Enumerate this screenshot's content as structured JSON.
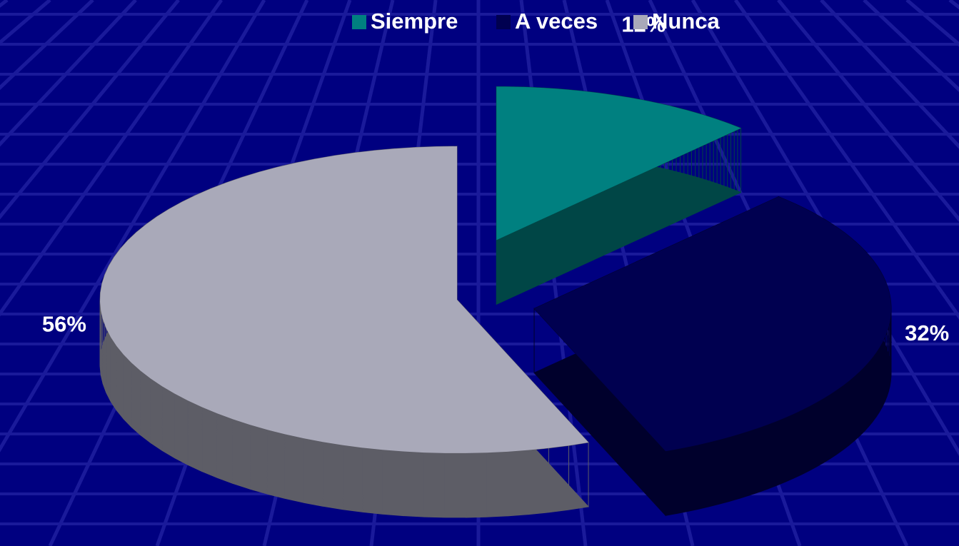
{
  "chart_data": {
    "type": "pie",
    "categories": [
      "Siempre",
      "A veces",
      "Nunca"
    ],
    "values": [
      12,
      32,
      56
    ],
    "value_labels": [
      "12%",
      "32%",
      "56%"
    ],
    "colors": [
      "#008080",
      "#000050",
      "#a9a9b9"
    ],
    "legend": "top"
  }
}
